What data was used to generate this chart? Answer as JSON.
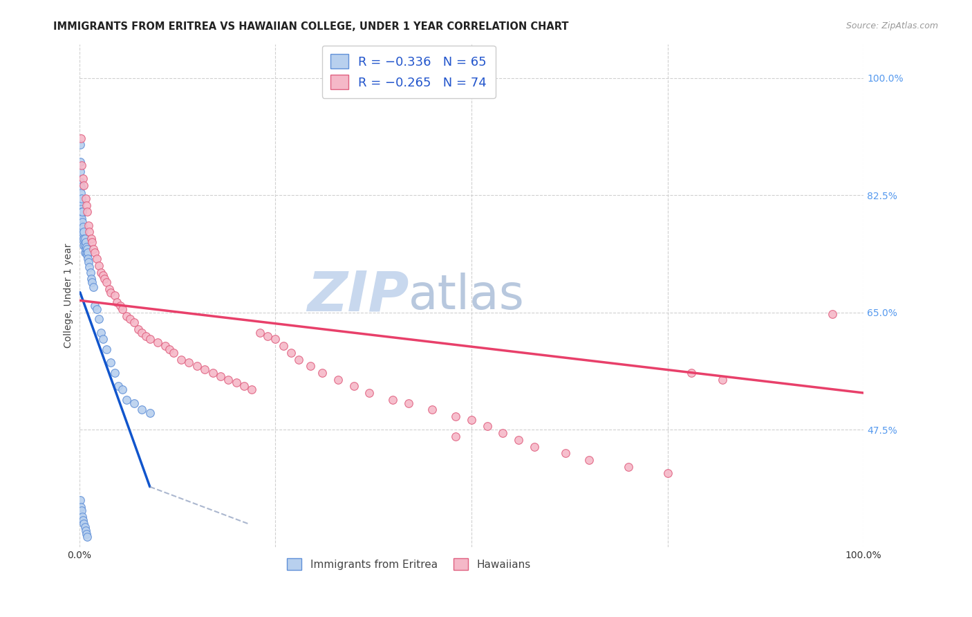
{
  "title": "IMMIGRANTS FROM ERITREA VS HAWAIIAN COLLEGE, UNDER 1 YEAR CORRELATION CHART",
  "source": "Source: ZipAtlas.com",
  "ylabel": "College, Under 1 year",
  "xlim": [
    0.0,
    1.0
  ],
  "ylim": [
    0.3,
    1.05
  ],
  "x_ticks": [
    0.0,
    0.25,
    0.5,
    0.75,
    1.0
  ],
  "x_tick_labels": [
    "0.0%",
    "",
    "",
    "",
    "100.0%"
  ],
  "y_tick_labels_right": [
    "100.0%",
    "82.5%",
    "65.0%",
    "47.5%"
  ],
  "y_tick_values_right": [
    1.0,
    0.825,
    0.65,
    0.475
  ],
  "grid_color": "#d0d0d0",
  "background_color": "#ffffff",
  "scatter_eritrea": {
    "color_face": "#b8d0ee",
    "color_edge": "#6090d8",
    "x": [
      0.001,
      0.001,
      0.001,
      0.001,
      0.002,
      0.002,
      0.002,
      0.002,
      0.002,
      0.003,
      0.003,
      0.003,
      0.003,
      0.003,
      0.004,
      0.004,
      0.004,
      0.004,
      0.005,
      0.005,
      0.005,
      0.006,
      0.006,
      0.006,
      0.007,
      0.007,
      0.007,
      0.008,
      0.008,
      0.009,
      0.009,
      0.01,
      0.01,
      0.011,
      0.011,
      0.012,
      0.013,
      0.014,
      0.015,
      0.016,
      0.018,
      0.02,
      0.022,
      0.025,
      0.028,
      0.03,
      0.035,
      0.04,
      0.045,
      0.05,
      0.055,
      0.06,
      0.07,
      0.08,
      0.09,
      0.001,
      0.002,
      0.003,
      0.004,
      0.005,
      0.006,
      0.007,
      0.008,
      0.009,
      0.01
    ],
    "y": [
      0.9,
      0.875,
      0.86,
      0.845,
      0.838,
      0.828,
      0.815,
      0.805,
      0.795,
      0.82,
      0.8,
      0.79,
      0.78,
      0.77,
      0.8,
      0.785,
      0.775,
      0.765,
      0.778,
      0.768,
      0.758,
      0.77,
      0.76,
      0.75,
      0.76,
      0.75,
      0.74,
      0.755,
      0.745,
      0.748,
      0.738,
      0.745,
      0.735,
      0.74,
      0.73,
      0.725,
      0.718,
      0.71,
      0.7,
      0.695,
      0.688,
      0.66,
      0.655,
      0.64,
      0.62,
      0.61,
      0.595,
      0.575,
      0.56,
      0.54,
      0.535,
      0.52,
      0.515,
      0.505,
      0.5,
      0.37,
      0.36,
      0.355,
      0.345,
      0.34,
      0.335,
      0.33,
      0.325,
      0.32,
      0.315
    ]
  },
  "scatter_hawaiian": {
    "color_face": "#f5b8c8",
    "color_edge": "#e06080",
    "x": [
      0.002,
      0.003,
      0.005,
      0.006,
      0.008,
      0.009,
      0.01,
      0.012,
      0.013,
      0.015,
      0.016,
      0.018,
      0.02,
      0.022,
      0.025,
      0.028,
      0.03,
      0.032,
      0.035,
      0.038,
      0.04,
      0.045,
      0.048,
      0.052,
      0.055,
      0.06,
      0.065,
      0.07,
      0.075,
      0.08,
      0.085,
      0.09,
      0.1,
      0.11,
      0.115,
      0.12,
      0.13,
      0.14,
      0.15,
      0.16,
      0.17,
      0.18,
      0.19,
      0.2,
      0.21,
      0.22,
      0.23,
      0.24,
      0.25,
      0.26,
      0.27,
      0.28,
      0.295,
      0.31,
      0.33,
      0.35,
      0.37,
      0.4,
      0.42,
      0.45,
      0.48,
      0.5,
      0.52,
      0.54,
      0.56,
      0.58,
      0.62,
      0.65,
      0.7,
      0.75,
      0.78,
      0.82,
      0.96,
      0.48
    ],
    "y": [
      0.91,
      0.87,
      0.85,
      0.84,
      0.82,
      0.81,
      0.8,
      0.78,
      0.77,
      0.76,
      0.755,
      0.745,
      0.74,
      0.73,
      0.72,
      0.71,
      0.705,
      0.7,
      0.695,
      0.685,
      0.68,
      0.675,
      0.665,
      0.66,
      0.655,
      0.645,
      0.64,
      0.635,
      0.625,
      0.62,
      0.615,
      0.61,
      0.605,
      0.6,
      0.595,
      0.59,
      0.58,
      0.575,
      0.57,
      0.565,
      0.56,
      0.555,
      0.55,
      0.545,
      0.54,
      0.535,
      0.62,
      0.615,
      0.61,
      0.6,
      0.59,
      0.58,
      0.57,
      0.56,
      0.55,
      0.54,
      0.53,
      0.52,
      0.515,
      0.505,
      0.495,
      0.49,
      0.48,
      0.47,
      0.46,
      0.45,
      0.44,
      0.43,
      0.42,
      0.41,
      0.56,
      0.55,
      0.648,
      0.465
    ]
  },
  "trendline_eritrea_solid": {
    "color": "#1155cc",
    "x_start": 0.001,
    "x_end": 0.09,
    "y_start": 0.68,
    "y_end": 0.39
  },
  "trendline_eritrea_dash": {
    "color": "#8899bb",
    "x_start": 0.09,
    "x_end": 0.215,
    "y_start": 0.39,
    "y_end": 0.335
  },
  "trendline_hawaiian": {
    "color": "#e8406a",
    "x_start": 0.0,
    "x_end": 1.0,
    "y_start": 0.668,
    "y_end": 0.53
  },
  "watermark_zip": "ZIP",
  "watermark_atlas": "atlas",
  "watermark_color_zip": "#c8d8ee",
  "watermark_color_atlas": "#b8c8de",
  "marker_size": 70
}
